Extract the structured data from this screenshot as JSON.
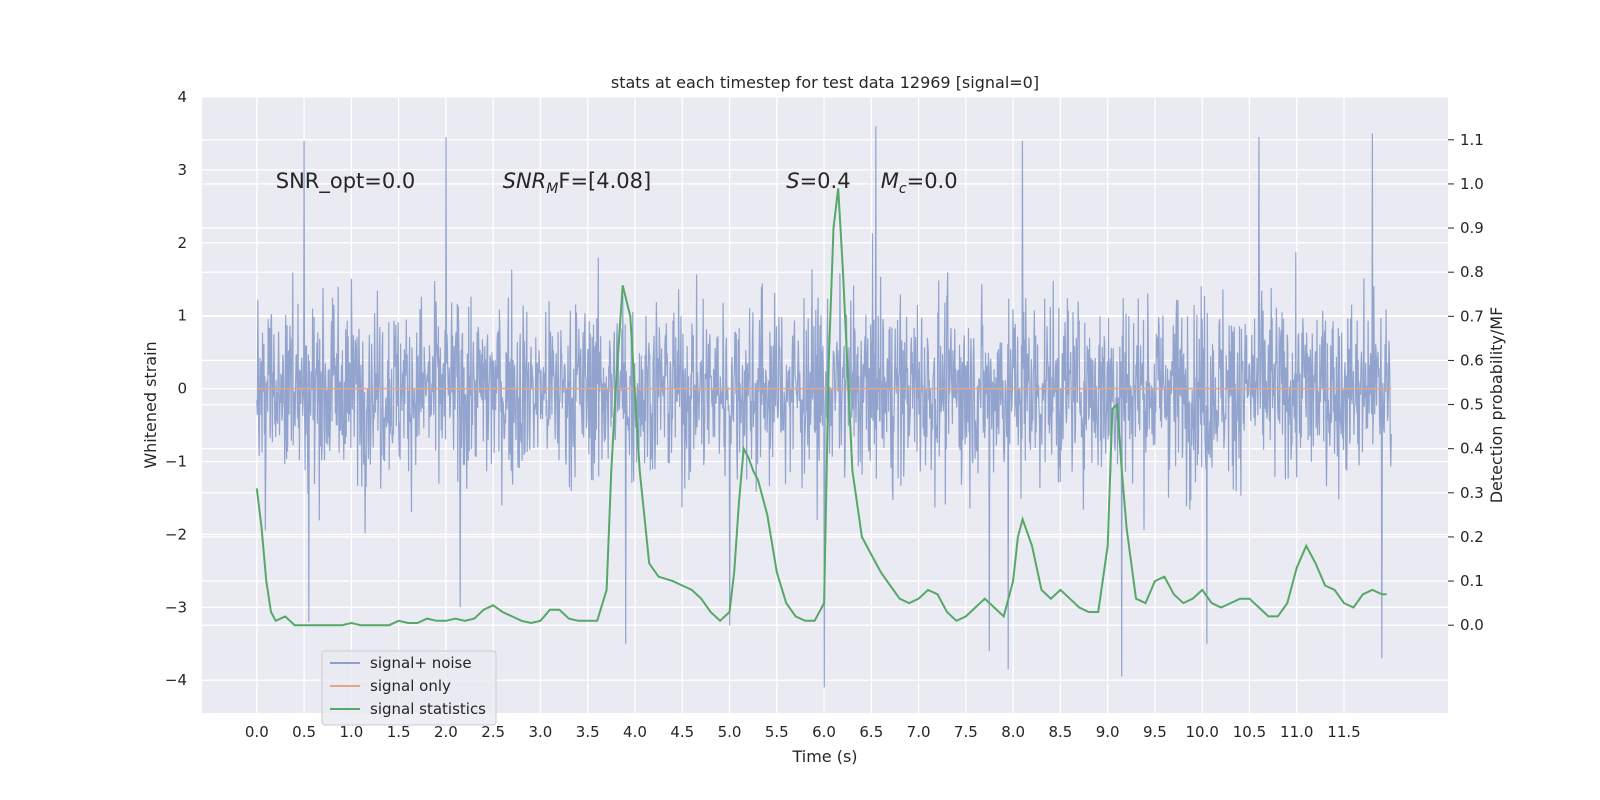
{
  "chart_data": {
    "type": "line",
    "title": "stats at each timestep for test data 12969 [signal=0]",
    "xlabel": "Time (s)",
    "ylabel_left": "Whitened strain",
    "ylabel_right": "Detection probability/MF",
    "xlim": [
      -0.58,
      12.6
    ],
    "ylim_left": [
      -4.45,
      4.0
    ],
    "ylim_right": [
      -0.199,
      1.197
    ],
    "x_ticks": [
      0.0,
      0.5,
      1.0,
      1.5,
      2.0,
      2.5,
      3.0,
      3.5,
      4.0,
      4.5,
      5.0,
      5.5,
      6.0,
      6.5,
      7.0,
      7.5,
      8.0,
      8.5,
      9.0,
      9.5,
      10.0,
      10.5,
      11.0,
      11.5
    ],
    "x_tick_labels": [
      "0.0",
      "0.5",
      "1.0",
      "1.5",
      "2.0",
      "2.5",
      "3.0",
      "3.5",
      "4.0",
      "4.5",
      "5.0",
      "5.5",
      "6.0",
      "6.5",
      "7.0",
      "7.5",
      "8.0",
      "8.5",
      "9.0",
      "9.5",
      "10.0",
      "10.5",
      "11.0",
      "11.5"
    ],
    "y_ticks_left": [
      -4,
      -3,
      -2,
      -1,
      0,
      1,
      2,
      3,
      4
    ],
    "y_tick_labels_left": [
      "−4",
      "−3",
      "−2",
      "−1",
      "0",
      "1",
      "2",
      "3",
      "4"
    ],
    "y_ticks_right": [
      0.0,
      0.1,
      0.2,
      0.3,
      0.4,
      0.5,
      0.6,
      0.7,
      0.8,
      0.9,
      1.0,
      1.1
    ],
    "y_tick_labels_right": [
      "0.0",
      "0.1",
      "0.2",
      "0.3",
      "0.4",
      "0.5",
      "0.6",
      "0.7",
      "0.8",
      "0.9",
      "1.0",
      "1.1"
    ],
    "grid": true,
    "legend_position": "lower-left",
    "annotations": [
      {
        "label": "SNR_opt",
        "text": "=0.0",
        "italic_label": false,
        "subscript": "",
        "x": 0.2,
        "y": 2.85
      },
      {
        "label": "SNR",
        "text": "F=[4.08]",
        "italic_label": true,
        "subscript": "M",
        "x": 2.6,
        "y": 2.85
      },
      {
        "label": "S",
        "text": "=0.4",
        "italic_label": true,
        "subscript": "",
        "x": 5.6,
        "y": 2.85
      },
      {
        "label": "M",
        "text": "=0.0",
        "italic_label": true,
        "subscript": "c",
        "x": 6.6,
        "y": 2.85
      }
    ],
    "series": [
      {
        "name": "signal+ noise",
        "color": "#8da0cb",
        "axis": "left",
        "kind": "noise",
        "x_range": [
          0.0,
          12.0
        ],
        "typical_amplitude": [
          -1.6,
          1.6
        ],
        "extremes": [
          {
            "x": 0.5,
            "y": 3.4
          },
          {
            "x": 0.55,
            "y": -3.2
          },
          {
            "x": 2.0,
            "y": 3.45
          },
          {
            "x": 2.15,
            "y": -3.0
          },
          {
            "x": 3.9,
            "y": -3.5
          },
          {
            "x": 5.0,
            "y": -3.25
          },
          {
            "x": 6.0,
            "y": -4.1
          },
          {
            "x": 6.55,
            "y": 3.6
          },
          {
            "x": 7.75,
            "y": -3.6
          },
          {
            "x": 7.95,
            "y": -3.85
          },
          {
            "x": 8.1,
            "y": 3.4
          },
          {
            "x": 9.15,
            "y": -3.95
          },
          {
            "x": 10.05,
            "y": -3.5
          },
          {
            "x": 10.6,
            "y": 3.45
          },
          {
            "x": 11.8,
            "y": 3.5
          },
          {
            "x": 11.9,
            "y": -3.7
          }
        ]
      },
      {
        "name": "signal only",
        "color": "#e5a58a",
        "axis": "left",
        "kind": "line",
        "x": [
          0.0,
          12.0
        ],
        "y": [
          0.0,
          0.0
        ]
      },
      {
        "name": "signal statistics",
        "color": "#55a868",
        "axis": "right",
        "kind": "line",
        "x": [
          0.0,
          0.05,
          0.1,
          0.15,
          0.2,
          0.3,
          0.4,
          0.5,
          0.6,
          0.7,
          0.8,
          0.9,
          1.0,
          1.1,
          1.2,
          1.3,
          1.4,
          1.5,
          1.6,
          1.7,
          1.8,
          1.9,
          2.0,
          2.1,
          2.2,
          2.3,
          2.4,
          2.5,
          2.6,
          2.7,
          2.8,
          2.9,
          3.0,
          3.1,
          3.2,
          3.3,
          3.4,
          3.5,
          3.6,
          3.7,
          3.75,
          3.8,
          3.87,
          3.95,
          4.05,
          4.15,
          4.25,
          4.4,
          4.5,
          4.6,
          4.7,
          4.8,
          4.9,
          5.0,
          5.05,
          5.1,
          5.15,
          5.2,
          5.25,
          5.3,
          5.4,
          5.5,
          5.6,
          5.7,
          5.8,
          5.9,
          6.0,
          6.05,
          6.1,
          6.15,
          6.2,
          6.3,
          6.4,
          6.5,
          6.6,
          6.7,
          6.8,
          6.9,
          7.0,
          7.1,
          7.2,
          7.3,
          7.4,
          7.5,
          7.6,
          7.7,
          7.8,
          7.9,
          8.0,
          8.05,
          8.1,
          8.2,
          8.3,
          8.4,
          8.5,
          8.6,
          8.7,
          8.8,
          8.9,
          9.0,
          9.05,
          9.1,
          9.15,
          9.2,
          9.3,
          9.4,
          9.5,
          9.6,
          9.7,
          9.8,
          9.9,
          10.0,
          10.1,
          10.2,
          10.3,
          10.4,
          10.5,
          10.6,
          10.7,
          10.8,
          10.9,
          11.0,
          11.1,
          11.2,
          11.3,
          11.4,
          11.5,
          11.6,
          11.7,
          11.8,
          11.9,
          11.95
        ],
        "y": [
          0.31,
          0.22,
          0.1,
          0.03,
          0.01,
          0.02,
          0.0,
          0.0,
          0.0,
          0.0,
          0.0,
          0.0,
          0.005,
          0.0,
          0.0,
          0.0,
          0.0,
          0.01,
          0.005,
          0.005,
          0.015,
          0.01,
          0.01,
          0.015,
          0.01,
          0.015,
          0.035,
          0.045,
          0.03,
          0.02,
          0.01,
          0.005,
          0.01,
          0.035,
          0.035,
          0.015,
          0.01,
          0.01,
          0.01,
          0.08,
          0.35,
          0.55,
          0.77,
          0.7,
          0.35,
          0.14,
          0.11,
          0.1,
          0.09,
          0.08,
          0.06,
          0.03,
          0.01,
          0.03,
          0.12,
          0.28,
          0.4,
          0.38,
          0.35,
          0.33,
          0.25,
          0.12,
          0.05,
          0.02,
          0.01,
          0.01,
          0.05,
          0.6,
          0.9,
          0.99,
          0.8,
          0.35,
          0.2,
          0.16,
          0.12,
          0.09,
          0.06,
          0.05,
          0.06,
          0.08,
          0.07,
          0.03,
          0.01,
          0.02,
          0.04,
          0.06,
          0.04,
          0.02,
          0.1,
          0.2,
          0.24,
          0.18,
          0.08,
          0.06,
          0.08,
          0.06,
          0.04,
          0.03,
          0.03,
          0.18,
          0.49,
          0.5,
          0.35,
          0.22,
          0.06,
          0.05,
          0.1,
          0.11,
          0.07,
          0.05,
          0.06,
          0.08,
          0.05,
          0.04,
          0.05,
          0.06,
          0.06,
          0.04,
          0.02,
          0.02,
          0.05,
          0.13,
          0.18,
          0.14,
          0.09,
          0.08,
          0.05,
          0.04,
          0.07,
          0.08,
          0.07,
          0.07
        ]
      }
    ]
  }
}
